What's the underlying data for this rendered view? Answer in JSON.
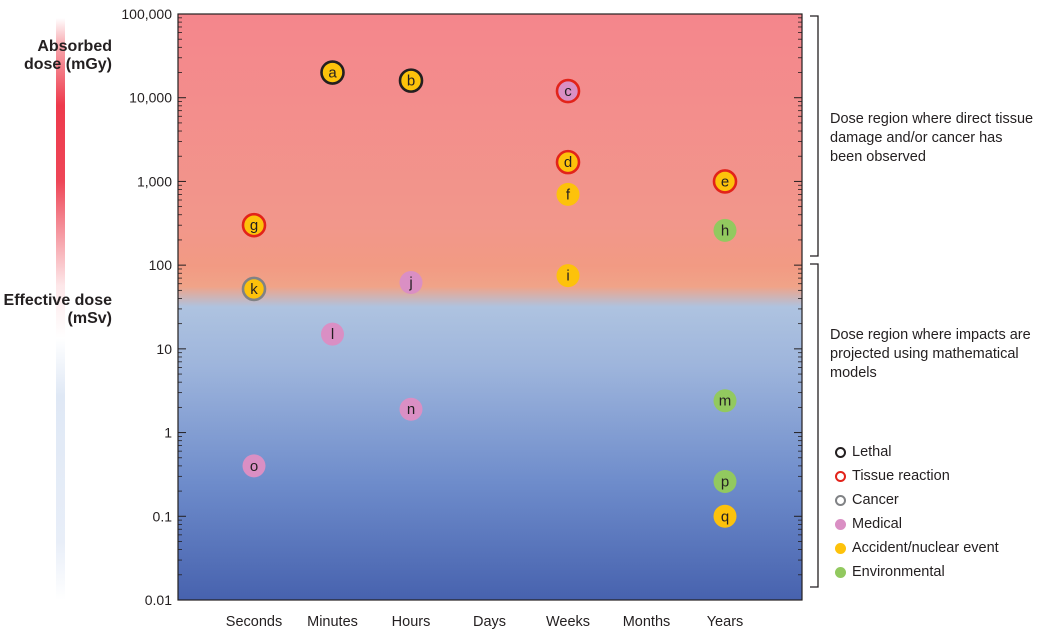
{
  "chart_data": {
    "type": "scatter",
    "y_scale": "log",
    "ylim": [
      0.01,
      100000
    ],
    "y_ticks": [
      "100,000",
      "10,000",
      "1,000",
      "100",
      "10",
      "1",
      "0.1",
      "0.01"
    ],
    "y_tick_values": [
      100000,
      10000,
      1000,
      100,
      10,
      1,
      0.1,
      0.01
    ],
    "categories": [
      "Seconds",
      "Minutes",
      "Hours",
      "Days",
      "Weeks",
      "Months",
      "Years"
    ],
    "ylabel_upper": "Absorbed dose (mGy)",
    "ylabel_lower": "Effective dose (mSv)",
    "annotations": {
      "upper": "Dose region where direct tissue damage and/or cancer has been observed",
      "lower": "Dose region where impacts are projected using mathematical models"
    },
    "legend": [
      {
        "key": "lethal",
        "label": "Lethal",
        "style": "ring",
        "color": "#231f20"
      },
      {
        "key": "tissue",
        "label": "Tissue reaction",
        "style": "ring",
        "color": "#e2231a"
      },
      {
        "key": "cancer",
        "label": "Cancer",
        "style": "ring",
        "color": "#808285"
      },
      {
        "key": "medical",
        "label": "Medical",
        "style": "dot",
        "color": "#da8fc4"
      },
      {
        "key": "accident",
        "label": "Accident/nuclear event",
        "style": "dot",
        "color": "#fdc20b"
      },
      {
        "key": "environmental",
        "label": "Environmental",
        "style": "dot",
        "color": "#92c95f"
      }
    ],
    "points": [
      {
        "label": "a",
        "x": "Minutes",
        "y": 20000,
        "fill": "accident",
        "ring": "lethal"
      },
      {
        "label": "b",
        "x": "Hours",
        "y": 16000,
        "fill": "accident",
        "ring": "lethal"
      },
      {
        "label": "c",
        "x": "Weeks",
        "y": 12000,
        "fill": "medical",
        "ring": "tissue"
      },
      {
        "label": "d",
        "x": "Weeks",
        "y": 1700,
        "fill": "accident",
        "ring": "tissue"
      },
      {
        "label": "e",
        "x": "Years",
        "y": 1000,
        "fill": "accident",
        "ring": "tissue"
      },
      {
        "label": "f",
        "x": "Weeks",
        "y": 700,
        "fill": "accident",
        "ring": null
      },
      {
        "label": "g",
        "x": "Seconds",
        "y": 300,
        "fill": "accident",
        "ring": "tissue"
      },
      {
        "label": "h",
        "x": "Years",
        "y": 260,
        "fill": "environmental",
        "ring": null
      },
      {
        "label": "i",
        "x": "Weeks",
        "y": 75,
        "fill": "accident",
        "ring": null
      },
      {
        "label": "j",
        "x": "Hours",
        "y": 62,
        "fill": "medical",
        "ring": null
      },
      {
        "label": "k",
        "x": "Seconds",
        "y": 52,
        "fill": "accident",
        "ring": "cancer"
      },
      {
        "label": "l",
        "x": "Minutes",
        "y": 15,
        "fill": "medical",
        "ring": null
      },
      {
        "label": "m",
        "x": "Years",
        "y": 2.4,
        "fill": "environmental",
        "ring": null
      },
      {
        "label": "n",
        "x": "Hours",
        "y": 1.9,
        "fill": "medical",
        "ring": null
      },
      {
        "label": "o",
        "x": "Seconds",
        "y": 0.4,
        "fill": "medical",
        "ring": null
      },
      {
        "label": "p",
        "x": "Years",
        "y": 0.26,
        "fill": "environmental",
        "ring": null
      },
      {
        "label": "q",
        "x": "Years",
        "y": 0.1,
        "fill": "accident",
        "ring": null
      }
    ]
  }
}
